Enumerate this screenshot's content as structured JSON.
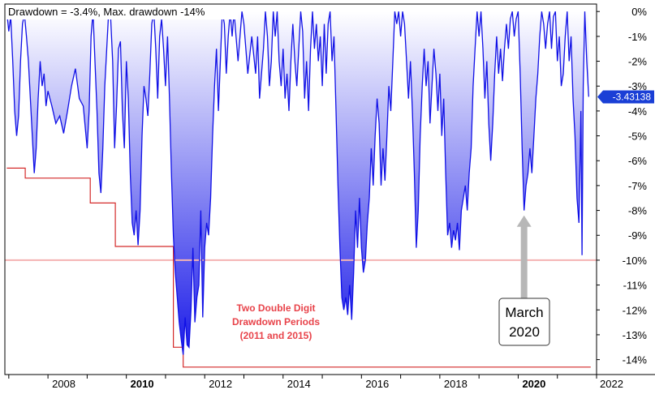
{
  "chart_data": {
    "type": "area",
    "title": "Drawdown = -3.4%, Max. drawdown -14%",
    "ylabel": "",
    "xlabel": "",
    "y_unit": "%",
    "ylim": [
      -14.6,
      0.3
    ],
    "xlim": [
      2006.9,
      2022.0
    ],
    "yticks": [
      "0%",
      "-1%",
      "-2%",
      "-3%",
      "-4%",
      "-5%",
      "-6%",
      "-7%",
      "-8%",
      "-9%",
      "-10%",
      "-11%",
      "-12%",
      "-13%",
      "-14%"
    ],
    "xticks": [
      {
        "label": "2008",
        "value": 2008,
        "bold": false
      },
      {
        "label": "2010",
        "value": 2010,
        "bold": true
      },
      {
        "label": "2012",
        "value": 2012,
        "bold": false
      },
      {
        "label": "2014",
        "value": 2014,
        "bold": false
      },
      {
        "label": "2016",
        "value": 2016,
        "bold": false
      },
      {
        "label": "2018",
        "value": 2018,
        "bold": false
      },
      {
        "label": "2020",
        "value": 2020,
        "bold": true
      },
      {
        "label": "2022",
        "value": 2022,
        "bold": false
      }
    ],
    "last_value_label": "-3.43138",
    "last_value": -3.43138,
    "reference_line": -10,
    "drawdown_series": [
      [
        2006.95,
        0
      ],
      [
        2007.0,
        -0.8
      ],
      [
        2007.05,
        -0.2
      ],
      [
        2007.1,
        -2.0
      ],
      [
        2007.15,
        -4.0
      ],
      [
        2007.2,
        -5.0
      ],
      [
        2007.25,
        -4.2
      ],
      [
        2007.3,
        -2.0
      ],
      [
        2007.35,
        -0.5
      ],
      [
        2007.4,
        -0.1
      ],
      [
        2007.45,
        -1.0
      ],
      [
        2007.5,
        -2.0
      ],
      [
        2007.55,
        -3.5
      ],
      [
        2007.6,
        -5.0
      ],
      [
        2007.65,
        -6.5
      ],
      [
        2007.7,
        -5.5
      ],
      [
        2007.75,
        -3.5
      ],
      [
        2007.8,
        -2.0
      ],
      [
        2007.85,
        -3.0
      ],
      [
        2007.9,
        -2.5
      ],
      [
        2007.95,
        -3.8
      ],
      [
        2008.0,
        -3.2
      ],
      [
        2008.1,
        -3.8
      ],
      [
        2008.2,
        -4.5
      ],
      [
        2008.3,
        -4.2
      ],
      [
        2008.4,
        -4.9
      ],
      [
        2008.5,
        -4.0
      ],
      [
        2008.6,
        -3.0
      ],
      [
        2008.7,
        -2.3
      ],
      [
        2008.8,
        -3.5
      ],
      [
        2008.9,
        -3.8
      ],
      [
        2009.0,
        -5.5
      ],
      [
        2009.05,
        -4.0
      ],
      [
        2009.1,
        -1.0
      ],
      [
        2009.15,
        0
      ],
      [
        2009.2,
        -2.0
      ],
      [
        2009.25,
        -4.0
      ],
      [
        2009.3,
        -6.5
      ],
      [
        2009.35,
        -7.3
      ],
      [
        2009.4,
        -5.5
      ],
      [
        2009.45,
        -3.0
      ],
      [
        2009.5,
        -1.5
      ],
      [
        2009.55,
        0
      ],
      [
        2009.6,
        -0.3
      ],
      [
        2009.65,
        -2.0
      ],
      [
        2009.7,
        -5.5
      ],
      [
        2009.75,
        -3.8
      ],
      [
        2009.8,
        -1.5
      ],
      [
        2009.85,
        -1.2
      ],
      [
        2009.9,
        -4.0
      ],
      [
        2009.95,
        -5.5
      ],
      [
        2010.0,
        -2.0
      ],
      [
        2010.05,
        -3.5
      ],
      [
        2010.1,
        -6.5
      ],
      [
        2010.15,
        -8.5
      ],
      [
        2010.2,
        -9.0
      ],
      [
        2010.25,
        -8.0
      ],
      [
        2010.3,
        -9.4
      ],
      [
        2010.35,
        -8.0
      ],
      [
        2010.4,
        -5.0
      ],
      [
        2010.45,
        -3.0
      ],
      [
        2010.5,
        -3.5
      ],
      [
        2010.55,
        -4.2
      ],
      [
        2010.6,
        -2.5
      ],
      [
        2010.65,
        -0.5
      ],
      [
        2010.7,
        0
      ],
      [
        2010.75,
        -1.5
      ],
      [
        2010.8,
        -3.5
      ],
      [
        2010.85,
        -1.0
      ],
      [
        2010.9,
        -0.3
      ],
      [
        2010.95,
        -1.5
      ],
      [
        2011.0,
        -3.0
      ],
      [
        2011.05,
        -1.0
      ],
      [
        2011.1,
        -3.5
      ],
      [
        2011.15,
        -6.5
      ],
      [
        2011.2,
        -9.0
      ],
      [
        2011.25,
        -10.5
      ],
      [
        2011.3,
        -11.5
      ],
      [
        2011.35,
        -12.5
      ],
      [
        2011.4,
        -13.2
      ],
      [
        2011.45,
        -13.8
      ],
      [
        2011.5,
        -12.3
      ],
      [
        2011.55,
        -13.4
      ],
      [
        2011.6,
        -13.5
      ],
      [
        2011.65,
        -12.0
      ],
      [
        2011.7,
        -9.5
      ],
      [
        2011.75,
        -12.5
      ],
      [
        2011.8,
        -11.5
      ],
      [
        2011.85,
        -11.0
      ],
      [
        2011.9,
        -8.0
      ],
      [
        2011.95,
        -12.3
      ],
      [
        2012.0,
        -9.5
      ],
      [
        2012.05,
        -8.5
      ],
      [
        2012.1,
        -9.0
      ],
      [
        2012.15,
        -7.5
      ],
      [
        2012.2,
        -5.0
      ],
      [
        2012.25,
        -3.0
      ],
      [
        2012.3,
        -1.5
      ],
      [
        2012.35,
        -4.0
      ],
      [
        2012.4,
        -2.0
      ],
      [
        2012.45,
        0
      ],
      [
        2012.5,
        -0.5
      ],
      [
        2012.55,
        -2.5
      ],
      [
        2012.6,
        -1.0
      ],
      [
        2012.65,
        0
      ],
      [
        2012.7,
        -1.0
      ],
      [
        2012.75,
        0
      ],
      [
        2012.8,
        -1.0
      ],
      [
        2012.85,
        -2.0
      ],
      [
        2012.9,
        -1.0
      ],
      [
        2012.95,
        0
      ],
      [
        2013.0,
        -0.5
      ],
      [
        2013.1,
        -2.5
      ],
      [
        2013.2,
        -1.0
      ],
      [
        2013.3,
        -2.5
      ],
      [
        2013.35,
        -1.0
      ],
      [
        2013.4,
        -3.5
      ],
      [
        2013.45,
        -2.5
      ],
      [
        2013.5,
        -1.5
      ],
      [
        2013.55,
        0
      ],
      [
        2013.6,
        -1.0
      ],
      [
        2013.65,
        -3.0
      ],
      [
        2013.7,
        -2.0
      ],
      [
        2013.75,
        0
      ],
      [
        2013.8,
        -1.0
      ],
      [
        2013.85,
        0
      ],
      [
        2013.9,
        -2.0
      ],
      [
        2013.95,
        -3.0
      ],
      [
        2014.0,
        -1.5
      ],
      [
        2014.05,
        -3.5
      ],
      [
        2014.1,
        -2.5
      ],
      [
        2014.15,
        -4.0
      ],
      [
        2014.2,
        -2.0
      ],
      [
        2014.25,
        -0.5
      ],
      [
        2014.3,
        -2.0
      ],
      [
        2014.35,
        -3.0
      ],
      [
        2014.4,
        -1.5
      ],
      [
        2014.45,
        0
      ],
      [
        2014.5,
        -0.8
      ],
      [
        2014.55,
        -3.5
      ],
      [
        2014.6,
        -2.0
      ],
      [
        2014.65,
        -4.0
      ],
      [
        2014.7,
        -1.5
      ],
      [
        2014.75,
        0
      ],
      [
        2014.8,
        -1.5
      ],
      [
        2014.85,
        -0.5
      ],
      [
        2014.9,
        -2.0
      ],
      [
        2014.95,
        -1.0
      ],
      [
        2015.0,
        -3.0
      ],
      [
        2015.05,
        -0.5
      ],
      [
        2015.1,
        -2.5
      ],
      [
        2015.15,
        -0.5
      ],
      [
        2015.2,
        0
      ],
      [
        2015.25,
        -2.0
      ],
      [
        2015.3,
        -1.0
      ],
      [
        2015.35,
        -4.0
      ],
      [
        2015.4,
        -7.0
      ],
      [
        2015.45,
        -9.5
      ],
      [
        2015.5,
        -11.5
      ],
      [
        2015.55,
        -12.0
      ],
      [
        2015.6,
        -11.5
      ],
      [
        2015.65,
        -12.2
      ],
      [
        2015.7,
        -11.0
      ],
      [
        2015.75,
        -12.4
      ],
      [
        2015.8,
        -10.5
      ],
      [
        2015.85,
        -8.0
      ],
      [
        2015.9,
        -9.5
      ],
      [
        2015.95,
        -7.5
      ],
      [
        2016.0,
        -9.5
      ],
      [
        2016.05,
        -10.5
      ],
      [
        2016.1,
        -10.0
      ],
      [
        2016.15,
        -8.5
      ],
      [
        2016.2,
        -7.5
      ],
      [
        2016.25,
        -5.5
      ],
      [
        2016.3,
        -7.0
      ],
      [
        2016.35,
        -5.0
      ],
      [
        2016.4,
        -3.5
      ],
      [
        2016.45,
        -4.5
      ],
      [
        2016.5,
        -7.0
      ],
      [
        2016.55,
        -5.5
      ],
      [
        2016.6,
        -6.8
      ],
      [
        2016.65,
        -5.0
      ],
      [
        2016.7,
        -3.0
      ],
      [
        2016.75,
        -4.0
      ],
      [
        2016.8,
        -2.0
      ],
      [
        2016.85,
        0
      ],
      [
        2016.9,
        -0.5
      ],
      [
        2016.95,
        0
      ],
      [
        2017.0,
        -1.0
      ],
      [
        2017.05,
        0
      ],
      [
        2017.1,
        -0.5
      ],
      [
        2017.15,
        -2.0
      ],
      [
        2017.2,
        -3.5
      ],
      [
        2017.25,
        -2.0
      ],
      [
        2017.3,
        -4.0
      ],
      [
        2017.35,
        -6.5
      ],
      [
        2017.4,
        -9.5
      ],
      [
        2017.45,
        -8.0
      ],
      [
        2017.5,
        -5.0
      ],
      [
        2017.55,
        -3.0
      ],
      [
        2017.6,
        -1.5
      ],
      [
        2017.65,
        -3.0
      ],
      [
        2017.7,
        -2.0
      ],
      [
        2017.75,
        -4.5
      ],
      [
        2017.8,
        -3.0
      ],
      [
        2017.85,
        -1.5
      ],
      [
        2017.9,
        -2.5
      ],
      [
        2017.95,
        -4.0
      ],
      [
        2018.0,
        -2.5
      ],
      [
        2018.05,
        -5.0
      ],
      [
        2018.1,
        -3.5
      ],
      [
        2018.15,
        -6.5
      ],
      [
        2018.2,
        -9.0
      ],
      [
        2018.25,
        -8.5
      ],
      [
        2018.3,
        -9.5
      ],
      [
        2018.35,
        -8.8
      ],
      [
        2018.4,
        -9.2
      ],
      [
        2018.45,
        -8.5
      ],
      [
        2018.5,
        -9.6
      ],
      [
        2018.55,
        -8.0
      ],
      [
        2018.6,
        -7.5
      ],
      [
        2018.65,
        -7.0
      ],
      [
        2018.7,
        -8.0
      ],
      [
        2018.75,
        -6.5
      ],
      [
        2018.8,
        -5.5
      ],
      [
        2018.85,
        -3.0
      ],
      [
        2018.9,
        -1.5
      ],
      [
        2018.95,
        0
      ],
      [
        2019.0,
        -1.0
      ],
      [
        2019.05,
        0
      ],
      [
        2019.1,
        -1.5
      ],
      [
        2019.15,
        -3.5
      ],
      [
        2019.2,
        -2.0
      ],
      [
        2019.25,
        -4.5
      ],
      [
        2019.3,
        -6.0
      ],
      [
        2019.35,
        -4.5
      ],
      [
        2019.4,
        -2.5
      ],
      [
        2019.45,
        -1.0
      ],
      [
        2019.5,
        -2.5
      ],
      [
        2019.55,
        -1.5
      ],
      [
        2019.6,
        -2.8
      ],
      [
        2019.65,
        -1.5
      ],
      [
        2019.7,
        -0.5
      ],
      [
        2019.75,
        -1.5
      ],
      [
        2019.8,
        -0.3
      ],
      [
        2019.85,
        0
      ],
      [
        2019.9,
        -1.0
      ],
      [
        2019.95,
        -0.3
      ],
      [
        2020.0,
        0
      ],
      [
        2020.05,
        -2.5
      ],
      [
        2020.1,
        -5.5
      ],
      [
        2020.15,
        -8.0
      ],
      [
        2020.2,
        -7.0
      ],
      [
        2020.25,
        -6.5
      ],
      [
        2020.3,
        -5.5
      ],
      [
        2020.35,
        -6.5
      ],
      [
        2020.4,
        -5.0
      ],
      [
        2020.45,
        -3.5
      ],
      [
        2020.5,
        -2.5
      ],
      [
        2020.55,
        -1.0
      ],
      [
        2020.6,
        0
      ],
      [
        2020.65,
        -0.5
      ],
      [
        2020.7,
        -1.5
      ],
      [
        2020.75,
        -0.5
      ],
      [
        2020.8,
        0
      ],
      [
        2020.85,
        -1.5
      ],
      [
        2020.9,
        -0.2
      ],
      [
        2020.95,
        0
      ],
      [
        2021.0,
        -2.0
      ],
      [
        2021.05,
        -1.0
      ],
      [
        2021.1,
        -3.0
      ],
      [
        2021.15,
        -2.5
      ],
      [
        2021.2,
        -1.0
      ],
      [
        2021.25,
        0
      ],
      [
        2021.3,
        -2.0
      ],
      [
        2021.35,
        -1.0
      ],
      [
        2021.4,
        -3.5
      ],
      [
        2021.45,
        -5.0
      ],
      [
        2021.5,
        -7.5
      ],
      [
        2021.55,
        -8.5
      ],
      [
        2021.58,
        -6.0
      ],
      [
        2021.6,
        -4.0
      ],
      [
        2021.63,
        -9.8
      ],
      [
        2021.66,
        -3.0
      ],
      [
        2021.7,
        0
      ],
      [
        2021.75,
        -2.0
      ],
      [
        2021.8,
        -3.43
      ]
    ],
    "max_drawdown_steps": [
      [
        2006.95,
        -6.3
      ],
      [
        2007.42,
        -6.3
      ],
      [
        2007.42,
        -6.7
      ],
      [
        2009.08,
        -6.7
      ],
      [
        2009.08,
        -7.7
      ],
      [
        2009.72,
        -7.7
      ],
      [
        2009.72,
        -9.45
      ],
      [
        2011.2,
        -9.45
      ],
      [
        2011.2,
        -13.5
      ],
      [
        2011.45,
        -13.5
      ],
      [
        2011.45,
        -14.3
      ],
      [
        2021.85,
        -14.3
      ]
    ],
    "annotations": [
      {
        "lines": [
          "Two Double Digit",
          "Drawdown Periods",
          "(2011 and 2015)"
        ],
        "color": "#e8434a"
      },
      {
        "lines": [
          "March",
          "2020"
        ],
        "arrow_x": 2020.15,
        "arrow_y": -8.2
      }
    ],
    "colors": {
      "series_line": "#1010e6",
      "fill_top": "#ffffff",
      "fill_bottom": "#1a1ae8",
      "max_drawdown_line": "#d42a2a",
      "reference_line": "#f4b3b3",
      "last_value_bg": "#1a3fd6",
      "arrow": "#b7b7b7"
    }
  }
}
